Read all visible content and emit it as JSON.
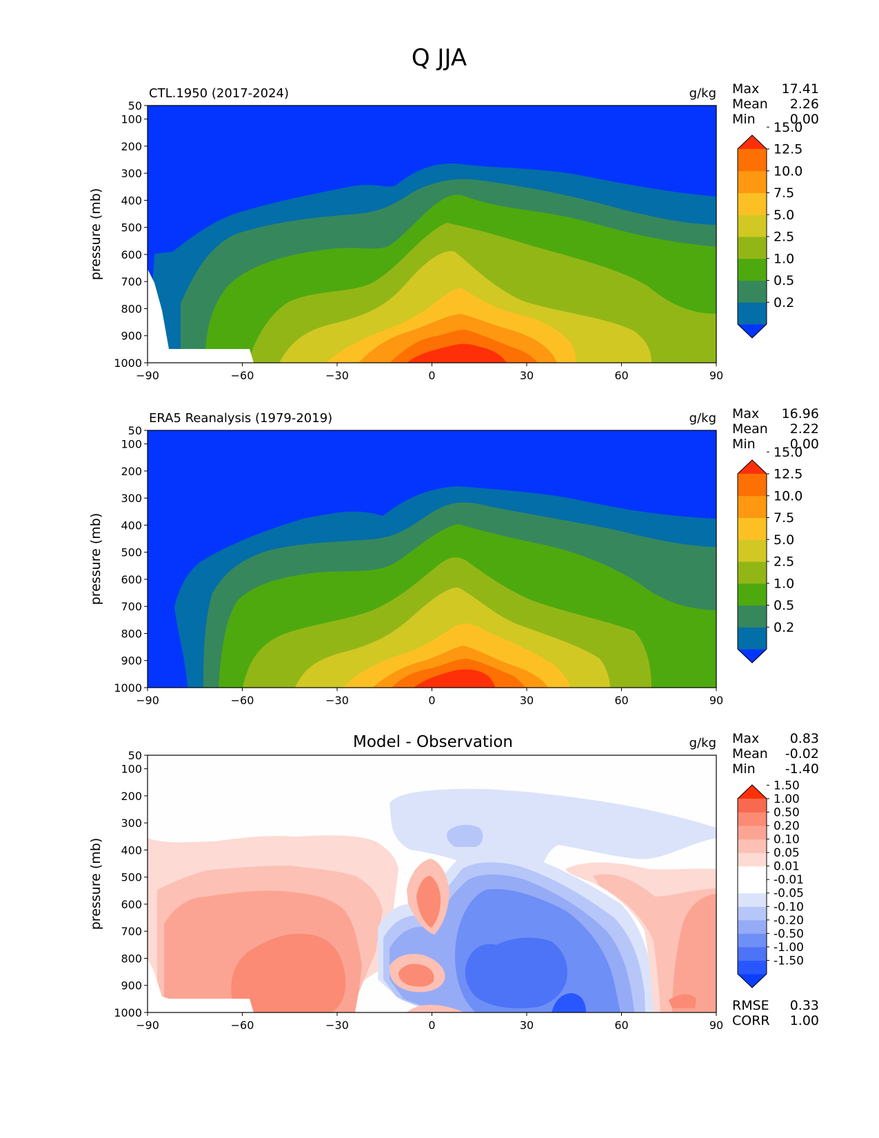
{
  "figure_title": "Q JJA",
  "panels": [
    {
      "id": "model",
      "title_left": "CTL.1950 (2017-2024)",
      "title_center": "",
      "units": "g/kg",
      "stats": [
        {
          "label": "Max",
          "value": "17.41"
        },
        {
          "label": "Mean",
          "value": "2.26"
        },
        {
          "label": "Min",
          "value": "0.00"
        }
      ],
      "footer_stats": [],
      "colorbar": {
        "colors": [
          "#0335ff",
          "#046ea8",
          "#37875d",
          "#4ea90f",
          "#93b617",
          "#d1c823",
          "#fdc024",
          "#fd9810",
          "#fd7003",
          "#ff3008"
        ],
        "labels": [
          "0.2",
          "0.5",
          "1.0",
          "2.5",
          "5.0",
          "7.5",
          "10.0",
          "12.5",
          "15.0"
        ]
      }
    },
    {
      "id": "obs",
      "title_left": "ERA5 Reanalysis (1979-2019)",
      "title_center": "",
      "units": "g/kg",
      "stats": [
        {
          "label": "Max",
          "value": "16.96"
        },
        {
          "label": "Mean",
          "value": "2.22"
        },
        {
          "label": "Min",
          "value": "0.00"
        }
      ],
      "footer_stats": [],
      "colorbar": {
        "colors": [
          "#0335ff",
          "#046ea8",
          "#37875d",
          "#4ea90f",
          "#93b617",
          "#d1c823",
          "#fdc024",
          "#fd9810",
          "#fd7003",
          "#ff3008"
        ],
        "labels": [
          "0.2",
          "0.5",
          "1.0",
          "2.5",
          "5.0",
          "7.5",
          "10.0",
          "12.5",
          "15.0"
        ]
      }
    },
    {
      "id": "diff",
      "title_left": "",
      "title_center": "Model - Observation",
      "units": "g/kg",
      "stats": [
        {
          "label": "Max",
          "value": "0.83"
        },
        {
          "label": "Mean",
          "value": "-0.02"
        },
        {
          "label": "Min",
          "value": "-1.40"
        }
      ],
      "footer_stats": [
        {
          "label": "RMSE",
          "value": "0.33"
        },
        {
          "label": "CORR",
          "value": "1.00"
        }
      ],
      "colorbar": {
        "colors": [
          "#0a3dff",
          "#2957ff",
          "#4d73f7",
          "#6e8ff5",
          "#96abf6",
          "#b7c6f8",
          "#dbe3fb",
          "#ffffff",
          "#ffffff",
          "#fddad3",
          "#fcc0b4",
          "#fca493",
          "#fb8b74",
          "#f86a4f",
          "#ff3008"
        ],
        "labels": [
          "-1.50",
          "-1.00",
          "-0.50",
          "-0.20",
          "-0.10",
          "-0.05",
          "-0.01",
          "0.01",
          "0.05",
          "0.10",
          "0.20",
          "0.50",
          "1.00",
          "1.50"
        ]
      }
    }
  ],
  "chart_data": [
    {
      "type": "heatmap",
      "panel": "model",
      "title": "CTL.1950 (2017-2024)",
      "xlabel": "",
      "ylabel": "pressure (mb)",
      "xlim": [
        -90,
        90
      ],
      "ylim": [
        1000,
        50
      ],
      "x_ticks": [
        -90,
        -60,
        -30,
        0,
        30,
        60,
        90
      ],
      "x_tick_labels": [
        "−90",
        "−60",
        "−30",
        "0",
        "30",
        "60",
        "90"
      ],
      "y_ticks": [
        50,
        100,
        200,
        300,
        400,
        500,
        600,
        700,
        800,
        900,
        1000
      ],
      "y_tick_labels": [
        "50",
        "100",
        "200",
        "300",
        "400",
        "500",
        "600",
        "700",
        "800",
        "900",
        "1000"
      ],
      "levels": [
        0.2,
        0.5,
        1.0,
        2.5,
        5.0,
        7.5,
        10.0,
        12.5,
        15.0
      ],
      "max": 17.41,
      "mean": 2.26,
      "min": 0.0
    },
    {
      "type": "heatmap",
      "panel": "obs",
      "title": "ERA5 Reanalysis (1979-2019)",
      "xlabel": "",
      "ylabel": "pressure (mb)",
      "xlim": [
        -90,
        90
      ],
      "ylim": [
        1000,
        50
      ],
      "x_ticks": [
        -90,
        -60,
        -30,
        0,
        30,
        60,
        90
      ],
      "x_tick_labels": [
        "−90",
        "−60",
        "−30",
        "0",
        "30",
        "60",
        "90"
      ],
      "y_ticks": [
        50,
        100,
        200,
        300,
        400,
        500,
        600,
        700,
        800,
        900,
        1000
      ],
      "y_tick_labels": [
        "50",
        "100",
        "200",
        "300",
        "400",
        "500",
        "600",
        "700",
        "800",
        "900",
        "1000"
      ],
      "levels": [
        0.2,
        0.5,
        1.0,
        2.5,
        5.0,
        7.5,
        10.0,
        12.5,
        15.0
      ],
      "max": 16.96,
      "mean": 2.22,
      "min": 0.0
    },
    {
      "type": "heatmap",
      "panel": "diff",
      "title": "Model - Observation",
      "xlabel": "",
      "ylabel": "pressure (mb)",
      "xlim": [
        -90,
        90
      ],
      "ylim": [
        1000,
        50
      ],
      "x_ticks": [
        -90,
        -60,
        -30,
        0,
        30,
        60,
        90
      ],
      "x_tick_labels": [
        "−90",
        "−60",
        "−30",
        "0",
        "30",
        "60",
        "90"
      ],
      "y_ticks": [
        50,
        100,
        200,
        300,
        400,
        500,
        600,
        700,
        800,
        900,
        1000
      ],
      "y_tick_labels": [
        "50",
        "100",
        "200",
        "300",
        "400",
        "500",
        "600",
        "700",
        "800",
        "900",
        "1000"
      ],
      "levels": [
        -1.5,
        -1.0,
        -0.5,
        -0.2,
        -0.1,
        -0.05,
        -0.01,
        0.01,
        0.05,
        0.1,
        0.2,
        0.5,
        1.0,
        1.5
      ],
      "max": 0.83,
      "mean": -0.02,
      "min": -1.4,
      "rmse": 0.33,
      "corr": 1.0
    }
  ]
}
